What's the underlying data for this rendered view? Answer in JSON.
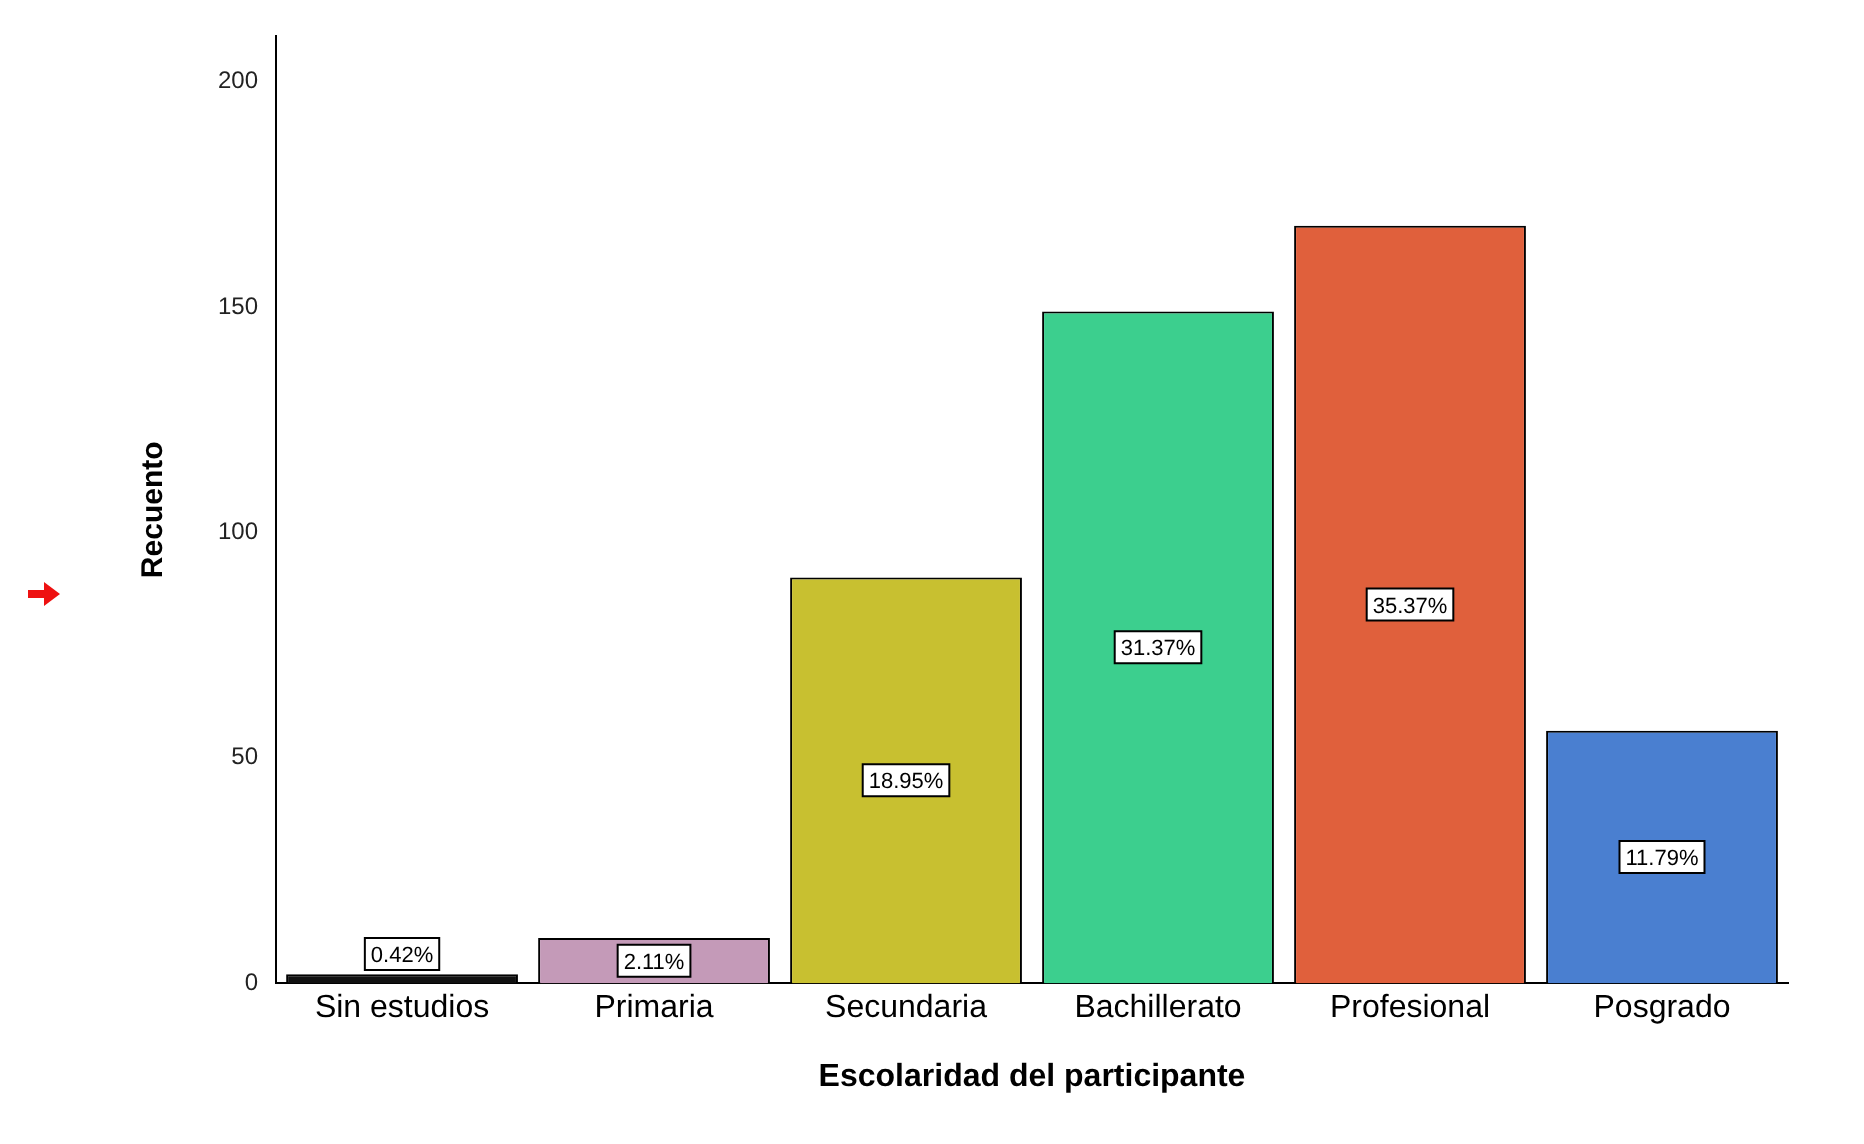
{
  "chart_data": {
    "type": "bar",
    "xlabel": "Escolaridad del participante",
    "ylabel": "Recuento",
    "categories": [
      "Sin estudios",
      "Primaria",
      "Secundaria",
      "Bachillerato",
      "Profesional",
      "Posgrado"
    ],
    "values": [
      2,
      10,
      90,
      149,
      168,
      56
    ],
    "colors": [
      "#111111",
      "#c49ab8",
      "#c8c030",
      "#3ccf8e",
      "#e0603c",
      "#4a7fd0"
    ],
    "annotations": [
      {
        "text": "0.42%",
        "x": "Sin estudios",
        "y": 6.5
      },
      {
        "text": "2.11%",
        "x": "Primaria",
        "y": 5
      },
      {
        "text": "18.95%",
        "x": "Secundaria",
        "y": 45
      },
      {
        "text": "31.37%",
        "x": "Bachillerato",
        "y": 74.5
      },
      {
        "text": "35.37%",
        "x": "Profesional",
        "y": 84
      },
      {
        "text": "11.79%",
        "x": "Posgrado",
        "y": 28
      }
    ],
    "ylim": [
      0,
      210
    ],
    "yticks": [
      0,
      50,
      100,
      150,
      200
    ],
    "grid": false,
    "legend": false
  }
}
